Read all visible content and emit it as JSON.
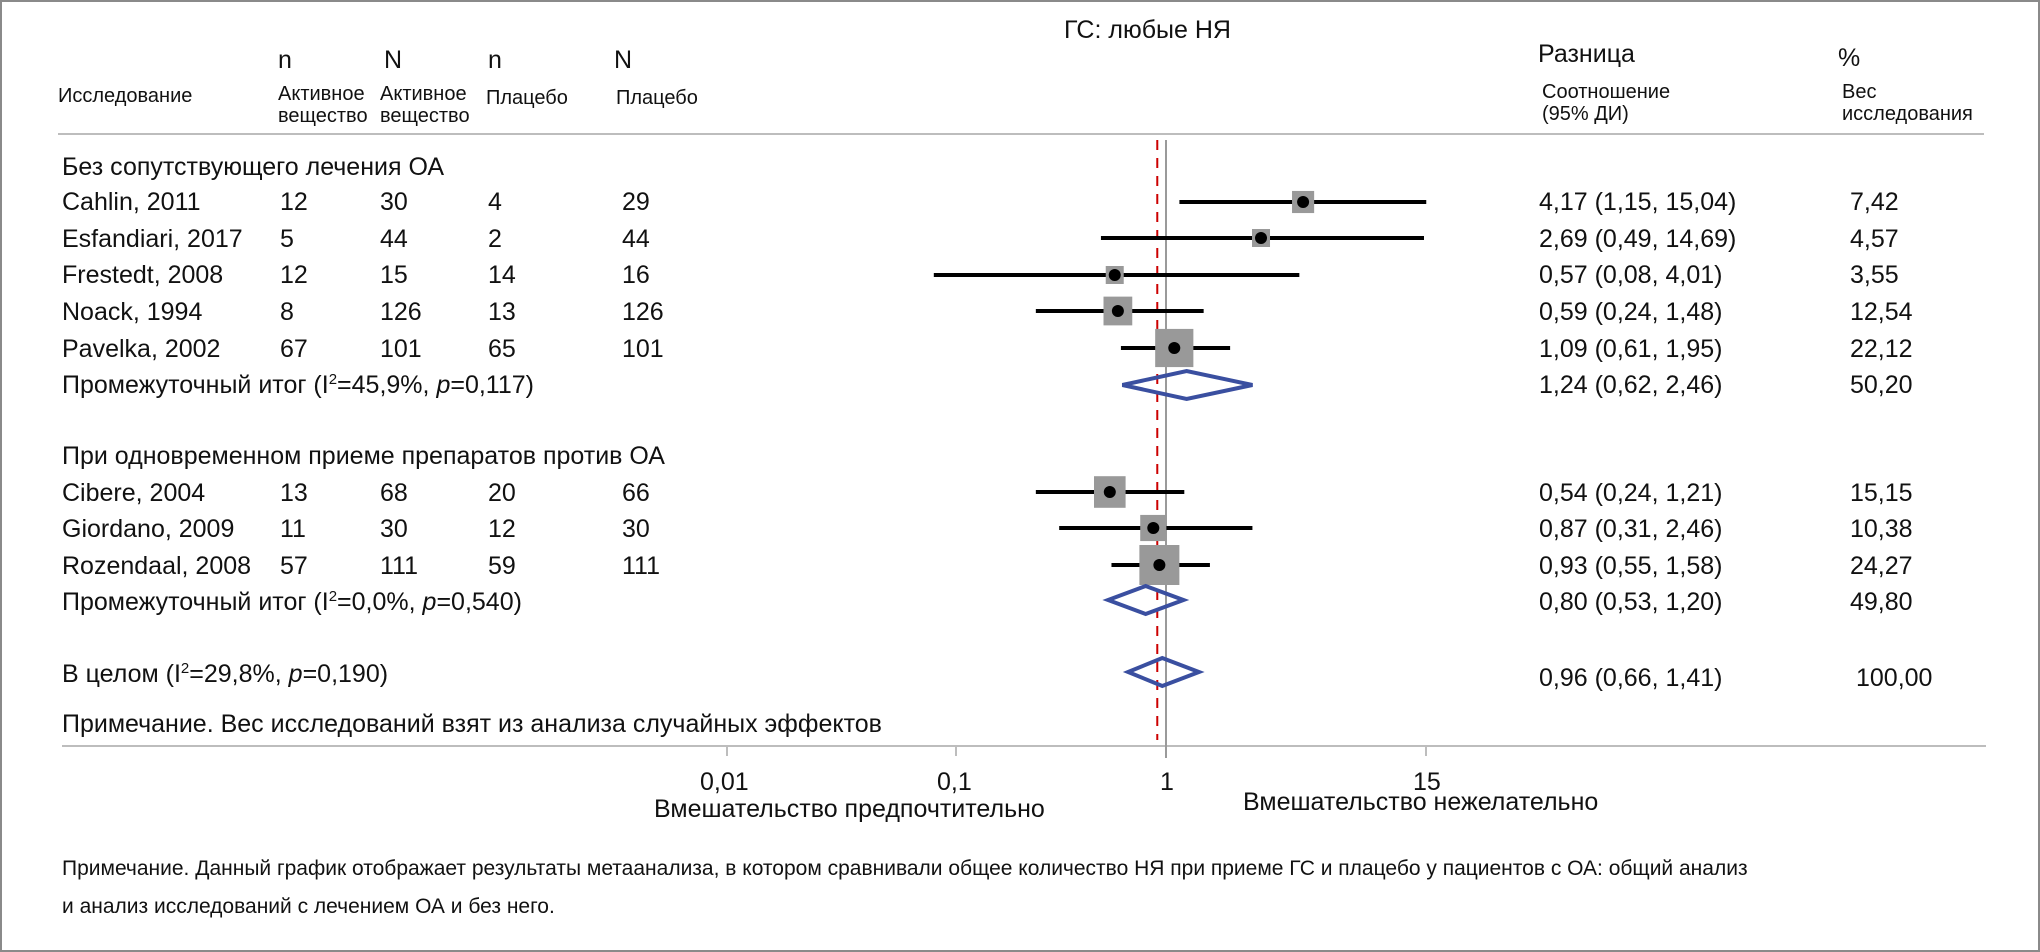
{
  "colors": {
    "square": "#999999",
    "ci_line": "#000000",
    "point": "#000000",
    "diamond": "#3a4fa0",
    "null_line": "#9a9a9a",
    "overall_line": "#cc0000",
    "divider": "#bdbdbd",
    "frame": "#8a8a8a"
  },
  "header": {
    "plot_title": "ГС: любые НЯ",
    "study_label": "Исследование",
    "col_n_active_top": "n",
    "col_n_active_bottom_1": "Активное",
    "col_n_active_bottom_2": "вещество",
    "col_N_active_top": "N",
    "col_N_active_bottom_1": "Активное",
    "col_N_active_bottom_2": "вещество",
    "col_n_placebo_top": "n",
    "col_n_placebo_bottom": "Плацебо",
    "col_N_placebo_top": "N",
    "col_N_placebo_bottom": "Плацебо",
    "effect_top": "Разница",
    "effect_bottom_1": "Соотношение",
    "effect_bottom_2": "(95% ДИ)",
    "weight_top": "%",
    "weight_bottom_1": "Вес",
    "weight_bottom_2": "исследования"
  },
  "groups": [
    {
      "title": "Без сопутствующего лечения ОА",
      "studies": [
        {
          "name": "Cahlin, 2011",
          "n_active": "12",
          "N_active": "30",
          "n_placebo": "4",
          "N_placebo": "29",
          "effect_text": "4,17 (1,15, 15,04)",
          "weight_text": "7,42"
        },
        {
          "name": "Esfandiari, 2017",
          "n_active": "5",
          "N_active": "44",
          "n_placebo": "2",
          "N_placebo": "44",
          "effect_text": "2,69 (0,49, 14,69)",
          "weight_text": "4,57"
        },
        {
          "name": "Frestedt, 2008",
          "n_active": "12",
          "N_active": "15",
          "n_placebo": "14",
          "N_placebo": "16",
          "effect_text": "0,57 (0,08, 4,01)",
          "weight_text": "3,55"
        },
        {
          "name": "Noack, 1994",
          "n_active": "8",
          "N_active": "126",
          "n_placebo": "13",
          "N_placebo": "126",
          "effect_text": "0,59 (0,24, 1,48)",
          "weight_text": "12,54"
        },
        {
          "name": "Pavelka, 2002",
          "n_active": "67",
          "N_active": "101",
          "n_placebo": "65",
          "N_placebo": "101",
          "effect_text": "1,09 (0,61, 1,95)",
          "weight_text": "22,12"
        }
      ],
      "subtotal": {
        "label_prefix": "Промежуточный итог (I",
        "label_sup": "2",
        "label_mid": "=45,9%, ",
        "label_p": "p",
        "label_suffix": "=0,117)",
        "effect_text": "1,24 (0,62, 2,46)",
        "weight_text": "50,20"
      }
    },
    {
      "title": "При одновременном приеме препаратов против ОА",
      "studies": [
        {
          "name": "Cibere, 2004",
          "n_active": "13",
          "N_active": "68",
          "n_placebo": "20",
          "N_placebo": "66",
          "effect_text": "0,54 (0,24, 1,21)",
          "weight_text": "15,15"
        },
        {
          "name": "Giordano, 2009",
          "n_active": "11",
          "N_active": "30",
          "n_placebo": "12",
          "N_placebo": "30",
          "effect_text": "0,87 (0,31, 2,46)",
          "weight_text": "10,38"
        },
        {
          "name": "Rozendaal, 2008",
          "n_active": "57",
          "N_active": "111",
          "n_placebo": "59",
          "N_placebo": "111",
          "effect_text": "0,93 (0,55, 1,58)",
          "weight_text": "24,27"
        }
      ],
      "subtotal": {
        "label_prefix": "Промежуточный итог (I",
        "label_sup": "2",
        "label_mid": "=0,0%, ",
        "label_p": "p",
        "label_suffix": "=0,540)",
        "effect_text": "0,80 (0,53, 1,20)",
        "weight_text": "49,80"
      }
    }
  ],
  "overall": {
    "label_prefix": "В целом (I",
    "label_sup": "2",
    "label_mid": "=29,8%, ",
    "label_p": "p",
    "label_suffix": "=0,190)",
    "effect_text": "0,96 (0,66, 1,41)",
    "weight_text": "100,00"
  },
  "weights_note": "Примечание. Вес исследований взят из анализа случайных эффектов",
  "axis": {
    "ticks": [
      "0,01",
      "0,1",
      "1",
      "15"
    ],
    "left_label": "Вмешательство предпочтительно",
    "right_label": "Вмешательство нежелательно"
  },
  "footnote_line1": "Примечание. Данный график отображает результаты метаанализа, в котором сравнивали общее количество НЯ при приеме ГС и плацебо у пациентов с ОА: общий анализ",
  "footnote_line2": "и анализ исследований с лечением ОА и без него.",
  "chart_data": {
    "type": "forest",
    "title": "ГС: любые НЯ",
    "xscale": "log",
    "xlim": [
      0.01,
      15
    ],
    "xticks": [
      0.01,
      0.1,
      1,
      15
    ],
    "xtick_labels": [
      "0,01",
      "0,1",
      "1",
      "15"
    ],
    "xlabel_left": "Вмешательство предпочтительно",
    "xlabel_right": "Вмешательство нежелательно",
    "null_value": 1,
    "overall_reference_line": 0.96,
    "studies": [
      {
        "group": "Без сопутствующего лечения ОА",
        "name": "Cahlin, 2011",
        "or": 4.17,
        "lo": 1.15,
        "hi": 15.04,
        "weight": 7.42
      },
      {
        "group": "Без сопутствующего лечения ОА",
        "name": "Esfandiari, 2017",
        "or": 2.69,
        "lo": 0.49,
        "hi": 14.69,
        "weight": 4.57
      },
      {
        "group": "Без сопутствующего лечения ОА",
        "name": "Frestedt, 2008",
        "or": 0.57,
        "lo": 0.08,
        "hi": 4.01,
        "weight": 3.55
      },
      {
        "group": "Без сопутствующего лечения ОА",
        "name": "Noack, 1994",
        "or": 0.59,
        "lo": 0.24,
        "hi": 1.48,
        "weight": 12.54
      },
      {
        "group": "Без сопутствующего лечения ОА",
        "name": "Pavelka, 2002",
        "or": 1.09,
        "lo": 0.61,
        "hi": 1.95,
        "weight": 22.12
      },
      {
        "group": "При одновременном приеме препаратов против ОА",
        "name": "Cibere, 2004",
        "or": 0.54,
        "lo": 0.24,
        "hi": 1.21,
        "weight": 15.15
      },
      {
        "group": "При одновременном приеме препаратов против ОА",
        "name": "Giordano, 2009",
        "or": 0.87,
        "lo": 0.31,
        "hi": 2.46,
        "weight": 10.38
      },
      {
        "group": "При одновременном приеме препаратов против ОА",
        "name": "Rozendaal, 2008",
        "or": 0.93,
        "lo": 0.55,
        "hi": 1.58,
        "weight": 24.27
      }
    ],
    "subtotals": [
      {
        "group": "Без сопутствующего лечения ОА",
        "or": 1.24,
        "lo": 0.62,
        "hi": 2.46,
        "weight": 50.2,
        "I2": 45.9,
        "p": 0.117
      },
      {
        "group": "При одновременном приеме препаратов против ОА",
        "or": 0.8,
        "lo": 0.53,
        "hi": 1.2,
        "weight": 49.8,
        "I2": 0.0,
        "p": 0.54
      }
    ],
    "overall": {
      "or": 0.96,
      "lo": 0.66,
      "hi": 1.41,
      "weight": 100.0,
      "I2": 29.8,
      "p": 0.19
    }
  }
}
